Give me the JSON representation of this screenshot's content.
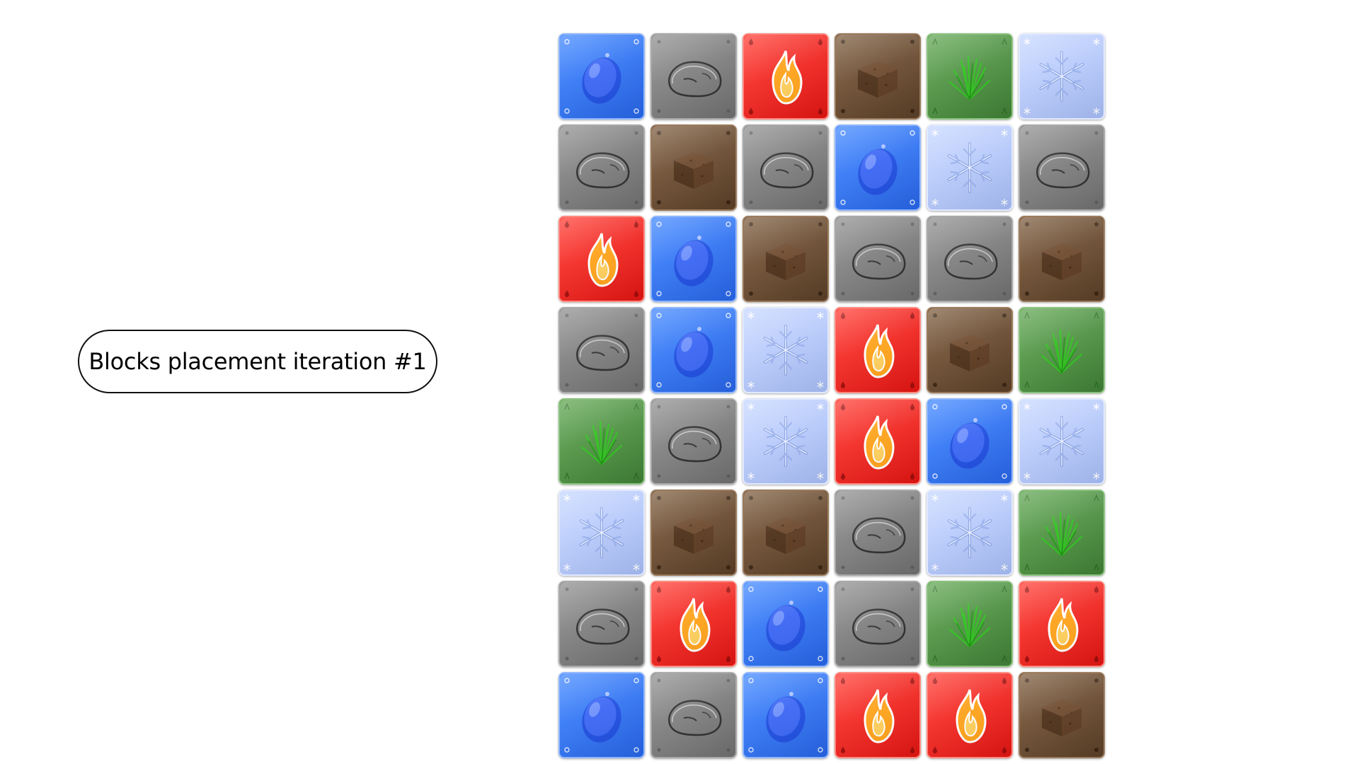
{
  "label": {
    "text": "Blocks placement iteration #1"
  },
  "colors": {
    "water": "#3b7cff",
    "rock": "#848484",
    "fire": "#f5201c",
    "dirt": "#6b4c30",
    "grass": "#4f9443",
    "ice": "#b8cbfb",
    "flame": "#ffa21a"
  },
  "block_icons": {
    "water": "water-drop-icon",
    "rock": "stone-icon",
    "fire": "flame-icon",
    "dirt": "dirt-cube-icon",
    "grass": "grass-icon",
    "ice": "snowflake-icon"
  },
  "grid": {
    "rows": 8,
    "cols": 6,
    "cells": [
      [
        "water",
        "rock",
        "fire",
        "dirt",
        "grass",
        "ice"
      ],
      [
        "rock",
        "dirt",
        "rock",
        "water",
        "ice",
        "rock"
      ],
      [
        "fire",
        "water",
        "dirt",
        "rock",
        "rock",
        "dirt"
      ],
      [
        "rock",
        "water",
        "ice",
        "fire",
        "dirt",
        "grass"
      ],
      [
        "grass",
        "rock",
        "ice",
        "fire",
        "water",
        "ice"
      ],
      [
        "ice",
        "dirt",
        "dirt",
        "rock",
        "ice",
        "grass"
      ],
      [
        "rock",
        "fire",
        "water",
        "rock",
        "grass",
        "fire"
      ],
      [
        "water",
        "rock",
        "water",
        "fire",
        "fire",
        "dirt"
      ]
    ]
  }
}
